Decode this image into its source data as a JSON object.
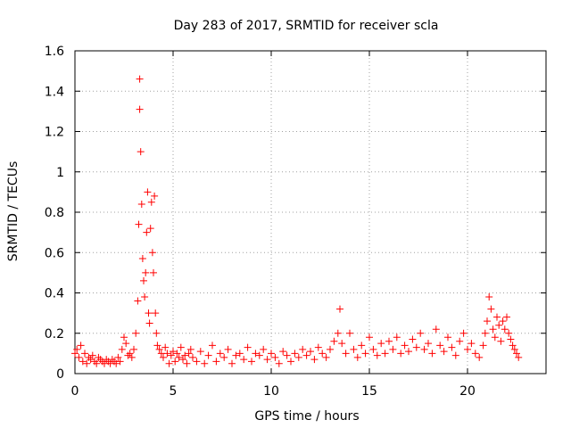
{
  "chart_data": {
    "type": "scatter",
    "title": "Day 283 of 2017, SRMTID for receiver scla",
    "xlabel": "GPS time / hours",
    "ylabel": "SRMTID / TECUs",
    "xlim": [
      0,
      24
    ],
    "ylim": [
      0,
      1.6
    ],
    "xticks": [
      0,
      5,
      10,
      15,
      20
    ],
    "xtick_labels": [
      "0",
      "5",
      "10",
      "15",
      "20"
    ],
    "yticks": [
      0,
      0.2,
      0.4,
      0.6,
      0.8,
      1.0,
      1.2,
      1.4,
      1.6
    ],
    "ytick_labels": [
      "0",
      "0.2",
      "0.4",
      "0.6",
      "0.8",
      "1",
      "1.2",
      "1.4",
      "1.6"
    ],
    "grid": true,
    "marker": "+",
    "marker_color": "#ff0000",
    "series": [
      {
        "name": "SRMTID",
        "x": [
          0.0,
          0.1,
          0.2,
          0.3,
          0.4,
          0.5,
          0.6,
          0.7,
          0.8,
          0.9,
          1.0,
          1.1,
          1.2,
          1.3,
          1.4,
          1.5,
          1.6,
          1.7,
          1.8,
          1.9,
          2.0,
          2.1,
          2.2,
          2.3,
          2.4,
          2.5,
          2.6,
          2.7,
          2.8,
          2.9,
          3.0,
          3.1,
          3.2,
          3.25,
          3.3,
          3.3,
          3.35,
          3.4,
          3.45,
          3.5,
          3.55,
          3.6,
          3.65,
          3.7,
          3.75,
          3.8,
          3.85,
          3.9,
          3.95,
          4.0,
          4.05,
          4.1,
          4.15,
          4.2,
          4.3,
          4.4,
          4.5,
          4.6,
          4.7,
          4.8,
          4.9,
          5.0,
          5.1,
          5.2,
          5.3,
          5.4,
          5.5,
          5.6,
          5.7,
          5.8,
          5.9,
          6.0,
          6.2,
          6.4,
          6.6,
          6.8,
          7.0,
          7.2,
          7.4,
          7.6,
          7.8,
          8.0,
          8.2,
          8.4,
          8.6,
          8.8,
          9.0,
          9.2,
          9.4,
          9.6,
          9.8,
          10.0,
          10.2,
          10.4,
          10.6,
          10.8,
          11.0,
          11.2,
          11.4,
          11.6,
          11.8,
          12.0,
          12.2,
          12.4,
          12.6,
          12.8,
          13.0,
          13.2,
          13.4,
          13.5,
          13.6,
          13.8,
          14.0,
          14.2,
          14.4,
          14.6,
          14.8,
          15.0,
          15.2,
          15.4,
          15.6,
          15.8,
          16.0,
          16.2,
          16.4,
          16.6,
          16.8,
          17.0,
          17.2,
          17.4,
          17.6,
          17.8,
          18.0,
          18.2,
          18.4,
          18.6,
          18.8,
          19.0,
          19.2,
          19.4,
          19.6,
          19.8,
          20.0,
          20.2,
          20.4,
          20.6,
          20.8,
          20.9,
          21.0,
          21.1,
          21.2,
          21.3,
          21.4,
          21.5,
          21.6,
          21.7,
          21.8,
          21.9,
          22.0,
          22.1,
          22.2,
          22.3,
          22.4,
          22.5,
          22.6
        ],
        "y": [
          0.1,
          0.12,
          0.08,
          0.14,
          0.06,
          0.1,
          0.05,
          0.08,
          0.07,
          0.09,
          0.06,
          0.05,
          0.08,
          0.07,
          0.06,
          0.05,
          0.07,
          0.06,
          0.05,
          0.07,
          0.06,
          0.05,
          0.08,
          0.06,
          0.12,
          0.18,
          0.15,
          0.09,
          0.1,
          0.08,
          0.12,
          0.2,
          0.36,
          0.74,
          1.46,
          1.31,
          1.1,
          0.84,
          0.57,
          0.46,
          0.38,
          0.5,
          0.7,
          0.9,
          0.3,
          0.25,
          0.72,
          0.85,
          0.6,
          0.5,
          0.88,
          0.3,
          0.2,
          0.14,
          0.12,
          0.1,
          0.08,
          0.13,
          0.1,
          0.05,
          0.09,
          0.11,
          0.06,
          0.1,
          0.08,
          0.13,
          0.07,
          0.09,
          0.05,
          0.1,
          0.12,
          0.08,
          0.06,
          0.11,
          0.05,
          0.09,
          0.14,
          0.06,
          0.1,
          0.08,
          0.12,
          0.05,
          0.09,
          0.1,
          0.07,
          0.13,
          0.06,
          0.1,
          0.09,
          0.12,
          0.07,
          0.1,
          0.08,
          0.05,
          0.11,
          0.09,
          0.06,
          0.1,
          0.08,
          0.12,
          0.09,
          0.11,
          0.07,
          0.13,
          0.1,
          0.08,
          0.12,
          0.16,
          0.2,
          0.32,
          0.15,
          0.1,
          0.2,
          0.12,
          0.08,
          0.14,
          0.1,
          0.18,
          0.12,
          0.09,
          0.15,
          0.1,
          0.16,
          0.12,
          0.18,
          0.1,
          0.14,
          0.11,
          0.17,
          0.13,
          0.2,
          0.12,
          0.15,
          0.1,
          0.22,
          0.14,
          0.11,
          0.18,
          0.13,
          0.09,
          0.16,
          0.2,
          0.12,
          0.15,
          0.1,
          0.08,
          0.14,
          0.2,
          0.26,
          0.38,
          0.32,
          0.22,
          0.18,
          0.28,
          0.24,
          0.16,
          0.26,
          0.22,
          0.28,
          0.2,
          0.17,
          0.14,
          0.12,
          0.1,
          0.08
        ]
      }
    ]
  }
}
